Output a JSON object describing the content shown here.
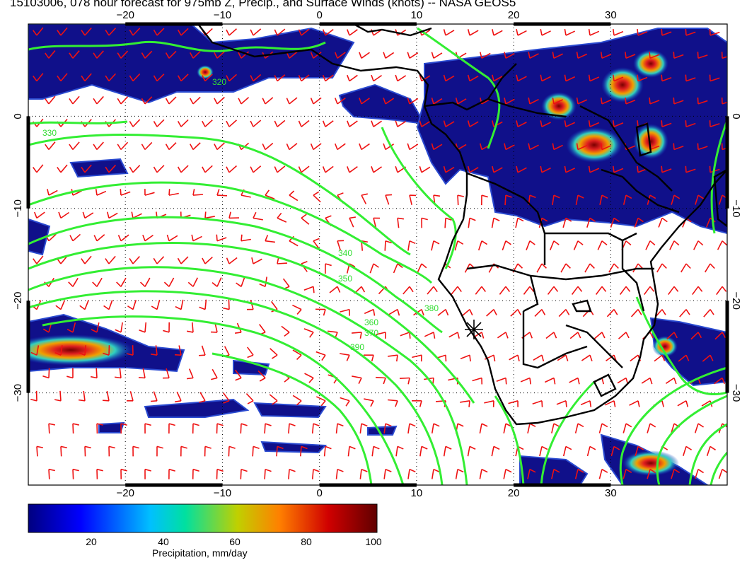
{
  "title": "15103006, 078 hour forecast for 975mb Z, Precip., and Surface Winds (knots) -- NASA GEOS5",
  "map": {
    "projection": "lat-lon",
    "lon_range": [
      -30,
      42
    ],
    "lat_range": [
      -40,
      10
    ],
    "grid": "dotted",
    "lon_ticks": [
      -20,
      -10,
      0,
      10,
      20,
      30
    ],
    "lon_tick_labels": [
      "−20",
      "−10",
      "0",
      "10",
      "20",
      "30"
    ],
    "lat_ticks": [
      0,
      -10,
      -20,
      -30
    ],
    "lat_tick_labels": [
      "0",
      "−10",
      "−20",
      "−30"
    ],
    "marker": {
      "type": "star",
      "lon": 15.2,
      "lat": -23.5
    },
    "colors": {
      "barbs": "#ee1111",
      "contours": "#33ee33",
      "coastline": "#000000",
      "precip_low": "#10108a",
      "precip_high": "#6a0000"
    }
  },
  "contours": {
    "variable": "975mb geopotential height",
    "labels": [
      "320",
      "330",
      "340",
      "350",
      "360",
      "370",
      "380",
      "390"
    ]
  },
  "colorbar": {
    "label": "Precipitation, mm/day",
    "ticks": [
      "20",
      "40",
      "60",
      "80",
      "100"
    ],
    "range": [
      0,
      100
    ],
    "colors": [
      "#000080",
      "#0000ff",
      "#00c0ff",
      "#00e0a0",
      "#c0d000",
      "#ff8000",
      "#d00000",
      "#600000"
    ]
  }
}
